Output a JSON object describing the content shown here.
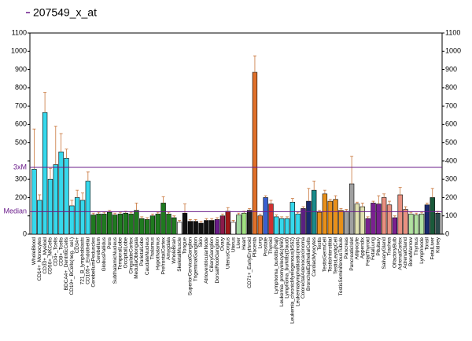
{
  "chart_data": {
    "type": "bar",
    "title": "207549_x_at",
    "categories": [
      "WholeBlood",
      "CD14+_Monocytes",
      "CD33+_Myeloid",
      "CD56+_NKCells",
      "CD4+_Tcells",
      "CD8+_Tcells",
      "BDCA4+_DentriticCells",
      "CD19+_BCells(neg._sel.)",
      "CD34+",
      "721_B_lymphoblasts",
      "CD105+_Endothelial",
      "CerebellumPeduncles",
      "Cerebellum",
      "GlobusPallidus",
      "Pons",
      "SubthalamicNucleus",
      "TemporalLobe",
      "OccipitalLobe",
      "CingulateCortex",
      "MedullaOblongata",
      "ParietalLobe",
      "CaudateNucleus",
      "Thalamus",
      "Hypothalamus",
      "PrefrontalCortex",
      "Amygdala",
      "WholeBrain",
      "SkeletalMuscle",
      "Tongue",
      "SuperiorCervicalGanglion",
      "TrigeminalGanglion",
      "Skin",
      "AtrioventricularNode",
      "CiliaryGanglion",
      "DorsalRootGanglion",
      "Ovary",
      "UterusCorpus",
      "Uterus",
      "Liver",
      "Heart",
      "CD71+_EarlyErythroid",
      "Placenta",
      "Lung",
      "Prostate",
      "Thyroid",
      "Lymphoma_burkitts(Raji)",
      "Leukemia_promyelocytic(hl60)",
      "Lymphoma_burkitts(Daudi)",
      "Leukemia_chronicMyelogenous(k562)",
      "Leukemialymphoblastic(molt4)",
      "ColorectalAdenocarcinoma",
      "BronchialEpithelialCells",
      "CardiacMyocytes",
      "Testis",
      "TestisGermCell",
      "TestisInterstitial",
      "TestisLeydigCell",
      "TestisSeminiferousTubule",
      "Pancreas",
      "PancreaticIslet",
      "Adipocyte",
      "Appendix",
      "FetalThyroid",
      "FetalLung",
      "Pituitary",
      "SalivaryGland",
      "Trachea",
      "OlfactoryBulb",
      "AdrenalCortex",
      "AdrenalGland",
      "BoneMarrow",
      "Thymus",
      "Lymphnode",
      "Tonsil",
      "FetalLiver",
      "Kidney"
    ],
    "values": [
      355,
      185,
      665,
      300,
      380,
      450,
      415,
      155,
      200,
      185,
      290,
      105,
      110,
      110,
      120,
      105,
      110,
      115,
      110,
      130,
      85,
      80,
      100,
      110,
      170,
      110,
      90,
      65,
      115,
      70,
      70,
      60,
      75,
      75,
      80,
      100,
      125,
      65,
      105,
      115,
      130,
      885,
      100,
      200,
      165,
      95,
      85,
      85,
      175,
      110,
      140,
      180,
      240,
      120,
      220,
      180,
      190,
      130,
      125,
      275,
      165,
      150,
      85,
      170,
      165,
      200,
      160,
      90,
      215,
      135,
      110,
      105,
      110,
      160,
      200,
      115
    ],
    "errors": [
      220,
      30,
      110,
      60,
      210,
      100,
      50,
      30,
      40,
      40,
      50,
      10,
      10,
      10,
      10,
      10,
      10,
      10,
      10,
      40,
      10,
      10,
      10,
      10,
      35,
      10,
      10,
      10,
      50,
      10,
      10,
      10,
      10,
      10,
      10,
      10,
      20,
      10,
      10,
      10,
      10,
      90,
      10,
      10,
      20,
      10,
      10,
      10,
      20,
      10,
      10,
      70,
      50,
      10,
      20,
      10,
      20,
      10,
      10,
      150,
      10,
      20,
      10,
      10,
      45,
      20,
      20,
      10,
      40,
      15,
      10,
      10,
      10,
      10,
      50,
      10
    ],
    "colors": [
      "#36d8ec",
      "#36d8ec",
      "#36d8ec",
      "#36d8ec",
      "#36d8ec",
      "#36d8ec",
      "#36d8ec",
      "#36d8ec",
      "#36d8ec",
      "#36d8ec",
      "#36d8ec",
      "#1f7a1f",
      "#1f7a1f",
      "#1f7a1f",
      "#1f7a1f",
      "#1f7a1f",
      "#1f7a1f",
      "#1f7a1f",
      "#1f7a1f",
      "#1f7a1f",
      "#1f7a1f",
      "#1f7a1f",
      "#1f7a1f",
      "#1f7a1f",
      "#1f7a1f",
      "#1f7a1f",
      "#1f7a1f",
      "#ffffff",
      "#111111",
      "#111111",
      "#111111",
      "#111111",
      "#111111",
      "#111111",
      "#6a1b8a",
      "#8b1a4a",
      "#a01818",
      "#ffffff",
      "#a0d8a0",
      "#a0e080",
      "#222222",
      "#e0702a",
      "#e0702a",
      "#3a60d0",
      "#d03030",
      "#36d8ec",
      "#36d8ec",
      "#36d8ec",
      "#36d8ec",
      "#36d8ec",
      "#5a2080",
      "#1a2a70",
      "#1a8a8a",
      "#e8901a",
      "#e8901a",
      "#e8901a",
      "#e8901a",
      "#e8901a",
      "#a0a0a0",
      "#a0a0a0",
      "#e0e0b0",
      "#e0e0b0",
      "#7a2090",
      "#7a2090",
      "#7a2090",
      "#e89080",
      "#e89080",
      "#7a2090",
      "#e89080",
      "#e89080",
      "#b0e0a0",
      "#b0e0a0",
      "#b0e0a0",
      "#1a2a70",
      "#1a5a3a",
      "#2a4a4a"
    ],
    "ylim": [
      0,
      1100
    ],
    "yticks": [
      0,
      100,
      200,
      300,
      400,
      500,
      600,
      700,
      800,
      900,
      1000,
      1100
    ],
    "ref_lines": [
      {
        "label": "3xM",
        "value": 365
      },
      {
        "label": "Median",
        "value": 123
      }
    ]
  }
}
